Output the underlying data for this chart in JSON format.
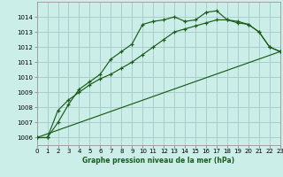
{
  "xlabel": "Graphe pression niveau de la mer (hPa)",
  "bg_color": "#cceee8",
  "grid_color": "#aacccc",
  "line_color": "#1a5c1a",
  "spine_color": "#999999",
  "line1": {
    "x": [
      0,
      1,
      2,
      3,
      4,
      5,
      6,
      7,
      8,
      9,
      10,
      11,
      12,
      13,
      14,
      15,
      16,
      17,
      18,
      19,
      20,
      21,
      22,
      23
    ],
    "y": [
      1006.0,
      1006.0,
      1007.0,
      1008.2,
      1009.2,
      1009.7,
      1010.2,
      1011.2,
      1011.7,
      1012.2,
      1013.5,
      1013.7,
      1013.8,
      1014.0,
      1013.7,
      1013.8,
      1014.3,
      1014.4,
      1013.8,
      1013.7,
      1013.5,
      1013.0,
      1012.0,
      1011.7
    ]
  },
  "line2": {
    "x": [
      0,
      1,
      2,
      3,
      4,
      5,
      6,
      7,
      8,
      9,
      10,
      11,
      12,
      13,
      14,
      15,
      16,
      17,
      18,
      19,
      20,
      21,
      22,
      23
    ],
    "y": [
      1006.0,
      1006.0,
      1007.8,
      1008.5,
      1009.0,
      1009.5,
      1009.9,
      1010.2,
      1010.6,
      1011.0,
      1011.5,
      1012.0,
      1012.5,
      1013.0,
      1013.2,
      1013.4,
      1013.6,
      1013.8,
      1013.8,
      1013.6,
      1013.5,
      1013.0,
      1012.0,
      1011.7
    ]
  },
  "line3": {
    "x": [
      0,
      23
    ],
    "y": [
      1006.0,
      1011.7
    ]
  },
  "ylim": [
    1005.5,
    1015.0
  ],
  "xlim": [
    0,
    23
  ],
  "yticks": [
    1006,
    1007,
    1008,
    1009,
    1010,
    1011,
    1012,
    1013,
    1014
  ],
  "xticks": [
    0,
    1,
    2,
    3,
    4,
    5,
    6,
    7,
    8,
    9,
    10,
    11,
    12,
    13,
    14,
    15,
    16,
    17,
    18,
    19,
    20,
    21,
    22,
    23
  ]
}
